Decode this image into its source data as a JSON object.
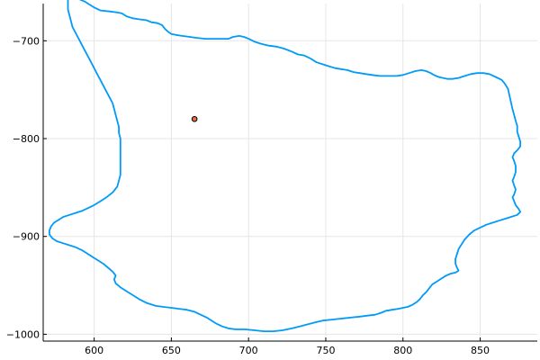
{
  "chart_data": {
    "type": "line",
    "title": "",
    "xlabel": "",
    "ylabel": "",
    "xlim": [
      567,
      887
    ],
    "ylim": [
      -1007,
      -662
    ],
    "grid": true,
    "legend": "none",
    "x_ticks": [
      600,
      650,
      700,
      750,
      800,
      850
    ],
    "x_tick_labels": [
      "600",
      "650",
      "700",
      "750",
      "800",
      "850"
    ],
    "y_ticks": [
      -700,
      -800,
      -900,
      -1000
    ],
    "y_tick_labels": [
      "−700",
      "−800",
      "−900",
      "−1000"
    ],
    "colors": {
      "outline": "#009af9",
      "marker_fill": "#e26f46",
      "marker_stroke": "#000000",
      "grid": "#e6e6e6",
      "axis": "#000000"
    },
    "series": [
      {
        "kind": "line",
        "points": [
          [
            585,
            -651
          ],
          [
            588,
            -652
          ],
          [
            590,
            -655
          ],
          [
            591,
            -658
          ],
          [
            594,
            -660
          ],
          [
            597,
            -663
          ],
          [
            600,
            -666
          ],
          [
            604,
            -669
          ],
          [
            610,
            -670
          ],
          [
            615,
            -671
          ],
          [
            618,
            -672
          ],
          [
            621,
            -675
          ],
          [
            625,
            -677
          ],
          [
            629,
            -678
          ],
          [
            634,
            -679
          ],
          [
            637,
            -681
          ],
          [
            641,
            -682
          ],
          [
            644,
            -684
          ],
          [
            646,
            -688
          ],
          [
            648,
            -691
          ],
          [
            650,
            -693
          ],
          [
            653,
            -694
          ],
          [
            657,
            -695
          ],
          [
            662,
            -696
          ],
          [
            666,
            -697
          ],
          [
            672,
            -698
          ],
          [
            677,
            -698
          ],
          [
            680,
            -698
          ],
          [
            684,
            -698
          ],
          [
            687,
            -698
          ],
          [
            690,
            -696
          ],
          [
            694,
            -695
          ],
          [
            697,
            -696
          ],
          [
            700,
            -698
          ],
          [
            704,
            -701
          ],
          [
            708,
            -703
          ],
          [
            713,
            -705
          ],
          [
            718,
            -706
          ],
          [
            723,
            -708
          ],
          [
            728,
            -711
          ],
          [
            732,
            -714
          ],
          [
            736,
            -715
          ],
          [
            740,
            -718
          ],
          [
            744,
            -722
          ],
          [
            748,
            -724
          ],
          [
            752,
            -726
          ],
          [
            756,
            -728
          ],
          [
            760,
            -729
          ],
          [
            764,
            -730
          ],
          [
            768,
            -732
          ],
          [
            772,
            -733
          ],
          [
            776,
            -734
          ],
          [
            780,
            -735
          ],
          [
            785,
            -736
          ],
          [
            790,
            -736
          ],
          [
            796,
            -736
          ],
          [
            800,
            -735
          ],
          [
            804,
            -733
          ],
          [
            808,
            -731
          ],
          [
            812,
            -730
          ],
          [
            815,
            -731
          ],
          [
            818,
            -733
          ],
          [
            820,
            -735
          ],
          [
            823,
            -737
          ],
          [
            826,
            -738
          ],
          [
            829,
            -739
          ],
          [
            832,
            -739
          ],
          [
            836,
            -738
          ],
          [
            840,
            -736
          ],
          [
            844,
            -734
          ],
          [
            848,
            -733
          ],
          [
            852,
            -733
          ],
          [
            856,
            -734
          ],
          [
            860,
            -737
          ],
          [
            864,
            -740
          ],
          [
            866,
            -744
          ],
          [
            868,
            -749
          ],
          [
            869,
            -756
          ],
          [
            870,
            -763
          ],
          [
            871,
            -770
          ],
          [
            872,
            -776
          ],
          [
            873,
            -782
          ],
          [
            874,
            -787
          ],
          [
            874,
            -793
          ],
          [
            875,
            -798
          ],
          [
            876,
            -803
          ],
          [
            876,
            -808
          ],
          [
            874,
            -812
          ],
          [
            872,
            -815
          ],
          [
            871,
            -819
          ],
          [
            872,
            -823
          ],
          [
            873,
            -828
          ],
          [
            873,
            -834
          ],
          [
            872,
            -839
          ],
          [
            871,
            -843
          ],
          [
            872,
            -848
          ],
          [
            873,
            -852
          ],
          [
            872,
            -857
          ],
          [
            871,
            -860
          ],
          [
            872,
            -864
          ],
          [
            873,
            -868
          ],
          [
            875,
            -872
          ],
          [
            876,
            -875
          ],
          [
            874,
            -878
          ],
          [
            870,
            -880
          ],
          [
            866,
            -882
          ],
          [
            862,
            -884
          ],
          [
            858,
            -886
          ],
          [
            854,
            -888
          ],
          [
            850,
            -891
          ],
          [
            846,
            -894
          ],
          [
            843,
            -898
          ],
          [
            840,
            -903
          ],
          [
            838,
            -908
          ],
          [
            836,
            -913
          ],
          [
            835,
            -918
          ],
          [
            834,
            -923
          ],
          [
            834,
            -928
          ],
          [
            835,
            -932
          ],
          [
            836,
            -935
          ],
          [
            834,
            -937
          ],
          [
            831,
            -938
          ],
          [
            828,
            -940
          ],
          [
            825,
            -943
          ],
          [
            822,
            -946
          ],
          [
            819,
            -949
          ],
          [
            817,
            -953
          ],
          [
            815,
            -957
          ],
          [
            813,
            -960
          ],
          [
            811,
            -964
          ],
          [
            809,
            -967
          ],
          [
            806,
            -970
          ],
          [
            803,
            -972
          ],
          [
            800,
            -973
          ],
          [
            797,
            -974
          ],
          [
            793,
            -975
          ],
          [
            789,
            -976
          ],
          [
            786,
            -978
          ],
          [
            782,
            -980
          ],
          [
            777,
            -981
          ],
          [
            772,
            -982
          ],
          [
            766,
            -983
          ],
          [
            760,
            -984
          ],
          [
            754,
            -985
          ],
          [
            748,
            -986
          ],
          [
            743,
            -988
          ],
          [
            738,
            -990
          ],
          [
            733,
            -992
          ],
          [
            728,
            -994
          ],
          [
            722,
            -996
          ],
          [
            716,
            -997
          ],
          [
            710,
            -997
          ],
          [
            704,
            -996
          ],
          [
            698,
            -995
          ],
          [
            692,
            -995
          ],
          [
            687,
            -994
          ],
          [
            683,
            -992
          ],
          [
            679,
            -989
          ],
          [
            676,
            -986
          ],
          [
            673,
            -983
          ],
          [
            669,
            -980
          ],
          [
            665,
            -977
          ],
          [
            660,
            -975
          ],
          [
            655,
            -974
          ],
          [
            650,
            -973
          ],
          [
            645,
            -972
          ],
          [
            640,
            -971
          ],
          [
            634,
            -968
          ],
          [
            629,
            -964
          ],
          [
            625,
            -960
          ],
          [
            621,
            -956
          ],
          [
            617,
            -952
          ],
          [
            614,
            -948
          ],
          [
            613,
            -944
          ],
          [
            614,
            -940
          ],
          [
            612,
            -936
          ],
          [
            609,
            -932
          ],
          [
            606,
            -928
          ],
          [
            603,
            -925
          ],
          [
            600,
            -922
          ],
          [
            596,
            -918
          ],
          [
            592,
            -914
          ],
          [
            588,
            -911
          ],
          [
            584,
            -909
          ],
          [
            580,
            -907
          ],
          [
            576,
            -905
          ],
          [
            573,
            -902
          ],
          [
            571,
            -898
          ],
          [
            571,
            -894
          ],
          [
            572,
            -890
          ],
          [
            574,
            -886
          ],
          [
            577,
            -883
          ],
          [
            580,
            -880
          ],
          [
            584,
            -878
          ],
          [
            588,
            -876
          ],
          [
            592,
            -874
          ],
          [
            596,
            -871
          ],
          [
            600,
            -868
          ],
          [
            604,
            -864
          ],
          [
            608,
            -860
          ],
          [
            612,
            -855
          ],
          [
            615,
            -849
          ],
          [
            616,
            -843
          ],
          [
            617,
            -837
          ],
          [
            617,
            -831
          ],
          [
            617,
            -825
          ],
          [
            617,
            -819
          ],
          [
            617,
            -813
          ],
          [
            617,
            -807
          ],
          [
            617,
            -800
          ],
          [
            616,
            -794
          ],
          [
            616,
            -788
          ],
          [
            615,
            -782
          ],
          [
            614,
            -776
          ],
          [
            613,
            -770
          ],
          [
            612,
            -764
          ],
          [
            610,
            -758
          ],
          [
            608,
            -752
          ],
          [
            606,
            -746
          ],
          [
            604,
            -740
          ],
          [
            602,
            -734
          ],
          [
            600,
            -728
          ],
          [
            598,
            -722
          ],
          [
            596,
            -716
          ],
          [
            594,
            -710
          ],
          [
            592,
            -704
          ],
          [
            590,
            -698
          ],
          [
            588,
            -692
          ],
          [
            586,
            -686
          ],
          [
            585,
            -680
          ],
          [
            584,
            -674
          ],
          [
            583,
            -668
          ],
          [
            583,
            -662
          ],
          [
            583,
            -656
          ],
          [
            585,
            -651
          ]
        ]
      },
      {
        "kind": "scatter",
        "points": [
          [
            665,
            -780
          ]
        ]
      }
    ]
  }
}
